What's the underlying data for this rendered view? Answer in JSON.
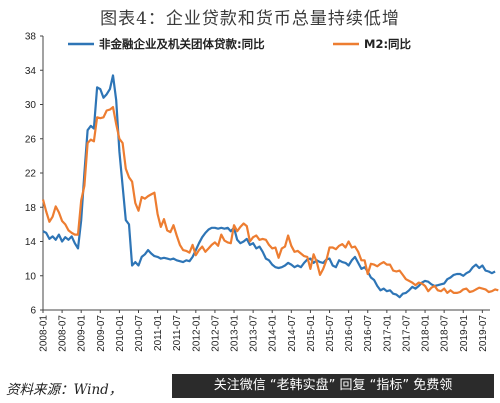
{
  "header": {
    "title": "图表4：企业贷款和货币总量持续低增"
  },
  "footer": {
    "source": "资料来源：Wind，",
    "watermark": "关注微信 “老韩实盘” 回复 “指标” 免费领"
  },
  "chart_data": {
    "type": "line",
    "title": "图表4：企业贷款和货币总量持续低增",
    "ylim": [
      6,
      38
    ],
    "yticks": [
      6,
      10,
      14,
      18,
      22,
      26,
      30,
      34,
      38
    ],
    "x_tick_labels": [
      "2008-01",
      "2008-07",
      "2009-01",
      "2009-07",
      "2010-01",
      "2010-07",
      "2011-01",
      "2011-07",
      "2012-01",
      "2012-07",
      "2013-01",
      "2013-07",
      "2014-01",
      "2014-07",
      "2015-01",
      "2015-07",
      "2016-01",
      "2016-07",
      "2017-01",
      "2017-07",
      "2018-01",
      "2018-07",
      "2019-01",
      "2019-07"
    ],
    "x_start": "2008-01",
    "legend_position": "top",
    "grid": false,
    "series": [
      {
        "name": "非金融企业及机关团体贷款:同比",
        "color": "#2e75b6",
        "values": [
          15.2,
          15.0,
          14.3,
          14.6,
          14.2,
          14.8,
          14.0,
          14.5,
          14.2,
          14.6,
          13.8,
          13.2,
          16.5,
          22.0,
          27.0,
          27.5,
          27.2,
          32.0,
          31.8,
          30.8,
          31.2,
          31.8,
          33.4,
          30.5,
          24.5,
          20.5,
          16.5,
          16.0,
          11.2,
          11.6,
          11.2,
          12.2,
          12.5,
          13.0,
          12.6,
          12.3,
          12.2,
          12.0,
          12.1,
          12.0,
          11.9,
          12.0,
          11.8,
          11.7,
          11.6,
          11.8,
          11.7,
          12.2,
          13.0,
          13.8,
          14.5,
          15.0,
          15.4,
          15.6,
          15.6,
          15.5,
          15.6,
          15.5,
          15.6,
          15.2,
          15.6,
          14.2,
          13.8,
          14.0,
          14.3,
          13.6,
          13.8,
          13.2,
          13.4,
          12.8,
          12.0,
          11.8,
          11.3,
          11.0,
          10.9,
          11.0,
          11.2,
          11.5,
          11.3,
          11.0,
          11.2,
          11.0,
          11.5,
          11.9,
          12.0,
          11.5,
          11.8,
          11.6,
          11.5,
          11.9,
          12.0,
          11.2,
          11.0,
          11.8,
          11.6,
          11.5,
          11.2,
          11.8,
          12.2,
          11.5,
          10.8,
          11.0,
          10.5,
          9.8,
          9.5,
          8.8,
          8.3,
          8.5,
          8.2,
          8.3,
          7.9,
          7.8,
          7.5,
          7.9,
          8.0,
          8.3,
          8.7,
          8.5,
          8.8,
          9.2,
          9.4,
          9.3,
          9.0,
          8.8,
          8.9,
          9.0,
          9.1,
          9.6,
          9.8,
          10.1,
          10.2,
          10.2,
          10.0,
          10.3,
          10.5,
          11.0,
          11.3,
          10.9,
          11.2,
          10.6,
          10.5,
          10.3,
          10.5
        ]
      },
      {
        "name": "M2:同比",
        "color": "#ed7d31",
        "values": [
          18.9,
          17.5,
          16.3,
          16.9,
          18.1,
          17.4,
          16.4,
          16.0,
          15.3,
          15.0,
          14.8,
          14.8,
          18.8,
          20.5,
          25.5,
          25.9,
          25.7,
          28.5,
          28.4,
          28.5,
          29.3,
          29.4,
          29.7,
          27.7,
          26.0,
          25.5,
          22.5,
          21.5,
          21.0,
          18.5,
          17.6,
          19.2,
          19.0,
          19.3,
          19.5,
          19.7,
          17.2,
          15.7,
          16.6,
          15.3,
          15.1,
          15.9,
          14.7,
          13.6,
          13.0,
          12.9,
          12.7,
          13.6,
          12.4,
          13.0,
          13.4,
          12.8,
          13.2,
          13.6,
          13.9,
          13.5,
          14.8,
          14.1,
          13.9,
          13.8,
          15.9,
          15.2,
          15.7,
          16.1,
          15.8,
          14.0,
          14.5,
          14.7,
          14.2,
          14.3,
          14.2,
          13.6,
          13.2,
          13.3,
          12.1,
          13.2,
          13.4,
          14.7,
          13.5,
          12.8,
          12.9,
          12.6,
          12.3,
          12.2,
          10.8,
          12.5,
          11.6,
          10.1,
          10.8,
          11.8,
          13.3,
          13.3,
          13.1,
          13.5,
          13.7,
          13.3,
          14.0,
          13.3,
          13.4,
          12.8,
          11.8,
          11.8,
          10.2,
          11.4,
          11.3,
          11.1,
          11.4,
          11.6,
          11.3,
          11.3,
          10.6,
          10.5,
          10.6,
          10.1,
          9.6,
          9.4,
          9.2,
          8.9,
          9.2,
          9.1,
          8.8,
          8.2,
          8.6,
          8.8,
          8.3,
          8.2,
          8.5,
          8.0,
          8.3,
          8.0,
          8.0,
          8.1,
          8.4,
          8.5,
          8.1,
          8.2,
          8.4,
          8.6,
          8.5,
          8.4,
          8.1,
          8.2,
          8.4,
          8.3
        ]
      }
    ]
  }
}
